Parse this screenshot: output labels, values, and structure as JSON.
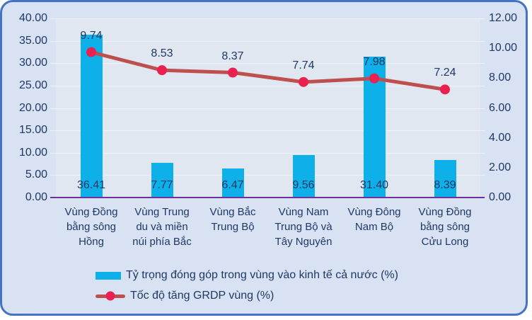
{
  "chart_data": {
    "type": "bar",
    "subtype": "combo-bar-line",
    "categories": [
      "Vùng Đồng bằng sông Hồng",
      "Vùng Trung du và miền núi phía Bắc",
      "Vùng Bắc Trung Bộ",
      "Vùng Nam Trung Bộ và Tây Nguyên",
      "Vùng Đông Nam Bộ",
      "Vùng Đồng bằng sông Cửu Long"
    ],
    "category_display": [
      "Vùng Đồng\nbằng sông\nHồng",
      "Vùng Trung\ndu và miền\nnúi phía Bắc",
      "Vùng Bắc\nTrung Bộ",
      "Vùng Nam\nTrung Bộ và\nTây Nguyên",
      "Vùng Đông\nNam Bộ",
      "Vùng Đồng\nbằng sông\nCửu Long"
    ],
    "series": [
      {
        "name": "Tỷ trọng đóng góp trong vùng vào kinh tế cả nước (%)",
        "type": "bar",
        "axis": "left",
        "values": [
          36.41,
          7.77,
          6.47,
          9.56,
          31.4,
          8.39
        ],
        "labels": [
          "36.41",
          "7.77",
          "6.47",
          "9.56",
          "31.40",
          "8.39"
        ]
      },
      {
        "name": "Tốc độ tăng GRDP vùng (%)",
        "type": "line",
        "axis": "right",
        "values": [
          9.74,
          8.53,
          8.37,
          7.74,
          7.98,
          7.24
        ],
        "labels": [
          "9.74",
          "8.53",
          "8.37",
          "7.74",
          "7.98",
          "7.24"
        ]
      }
    ],
    "left_axis": {
      "min": 0,
      "max": 40,
      "step": 5,
      "ticks": [
        "40.00",
        "35.00",
        "30.00",
        "25.00",
        "20.00",
        "15.00",
        "10.00",
        "5.00",
        "0.00"
      ]
    },
    "right_axis": {
      "min": 0,
      "max": 12,
      "step": 2,
      "ticks": [
        "12.00",
        "10.00",
        "8.00",
        "6.00",
        "4.00",
        "2.00",
        "0.00"
      ]
    },
    "grid": true,
    "legend_position": "bottom-left"
  },
  "colors": {
    "background": "#d9e2f2",
    "border": "#4472c4",
    "plot_bg": "#e1e7f0",
    "gridline": "#eef2f8",
    "bar": "#0eb0e9",
    "line": "#bd4f4e",
    "marker": "#e92050",
    "axis_line": "#7030a0",
    "text": "#1f3864"
  }
}
